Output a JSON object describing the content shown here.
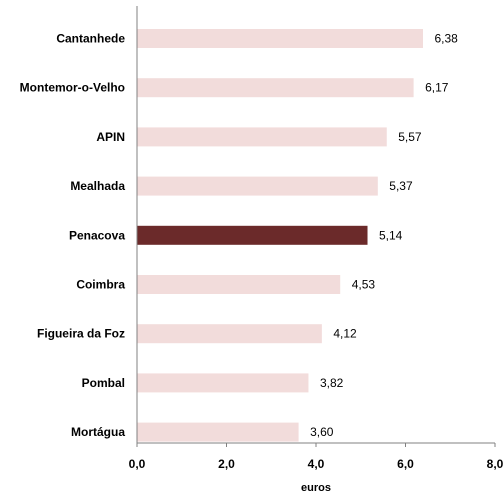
{
  "chart_data": {
    "type": "bar",
    "orientation": "horizontal",
    "categories": [
      "Cantanhede",
      "Montemor-o-Velho",
      "APIN",
      "Mealhada",
      "Penacova",
      "Coimbra",
      "Figueira da Foz",
      "Pombal",
      "Mortágua"
    ],
    "values": [
      6.38,
      6.17,
      5.57,
      5.37,
      5.14,
      4.53,
      4.12,
      3.82,
      3.6
    ],
    "value_labels": [
      "6,38",
      "6,17",
      "5,57",
      "5,37",
      "5,14",
      "4,53",
      "4,12",
      "3,82",
      "3,60"
    ],
    "highlight_category": "Penacova",
    "xlabel": "euros",
    "ylabel": "",
    "xlim": [
      0,
      8
    ],
    "x_ticks": [
      0,
      2,
      4,
      6,
      8
    ],
    "x_tick_labels": [
      "0,0",
      "2,0",
      "4,0",
      "6,0",
      "8,0"
    ],
    "grid": false,
    "colors": {
      "bar": "#f2dcdb",
      "highlight": "#6b2a2a",
      "axis": "#808080"
    }
  }
}
